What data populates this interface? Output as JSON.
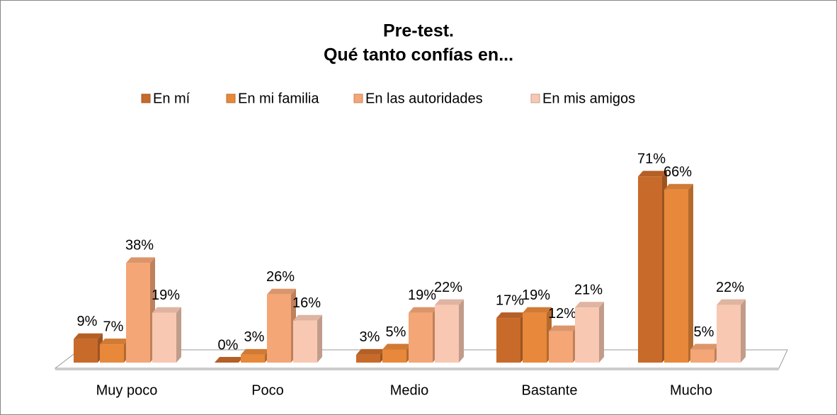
{
  "chart_data": {
    "type": "bar3d",
    "title": [
      "Pre-test.",
      "Qué tanto confías en..."
    ],
    "categories": [
      "Muy poco",
      "Poco",
      "Medio",
      "Bastante",
      "Mucho"
    ],
    "series": [
      {
        "name": "En mí",
        "color": "#c86a2a",
        "values": [
          9,
          0,
          3,
          17,
          71
        ],
        "value_labels": [
          "9%",
          "0%",
          "3%",
          "17%",
          "71%"
        ]
      },
      {
        "name": "En mi familia",
        "color": "#e8883a",
        "values": [
          7,
          3,
          5,
          19,
          66
        ],
        "value_labels": [
          "7%",
          "3%",
          "5%",
          "19%",
          "66%"
        ]
      },
      {
        "name": "En las autoridades",
        "color": "#f4a676",
        "values": [
          38,
          26,
          19,
          12,
          5
        ],
        "value_labels": [
          "38%",
          "26%",
          "19%",
          "12%",
          "5%"
        ]
      },
      {
        "name": "En mis amigos",
        "color": "#f8c8b2",
        "values": [
          19,
          16,
          22,
          21,
          22
        ],
        "value_labels": [
          "19%",
          "16%",
          "22%",
          "21%",
          "22%"
        ]
      }
    ],
    "legend": "top"
  }
}
